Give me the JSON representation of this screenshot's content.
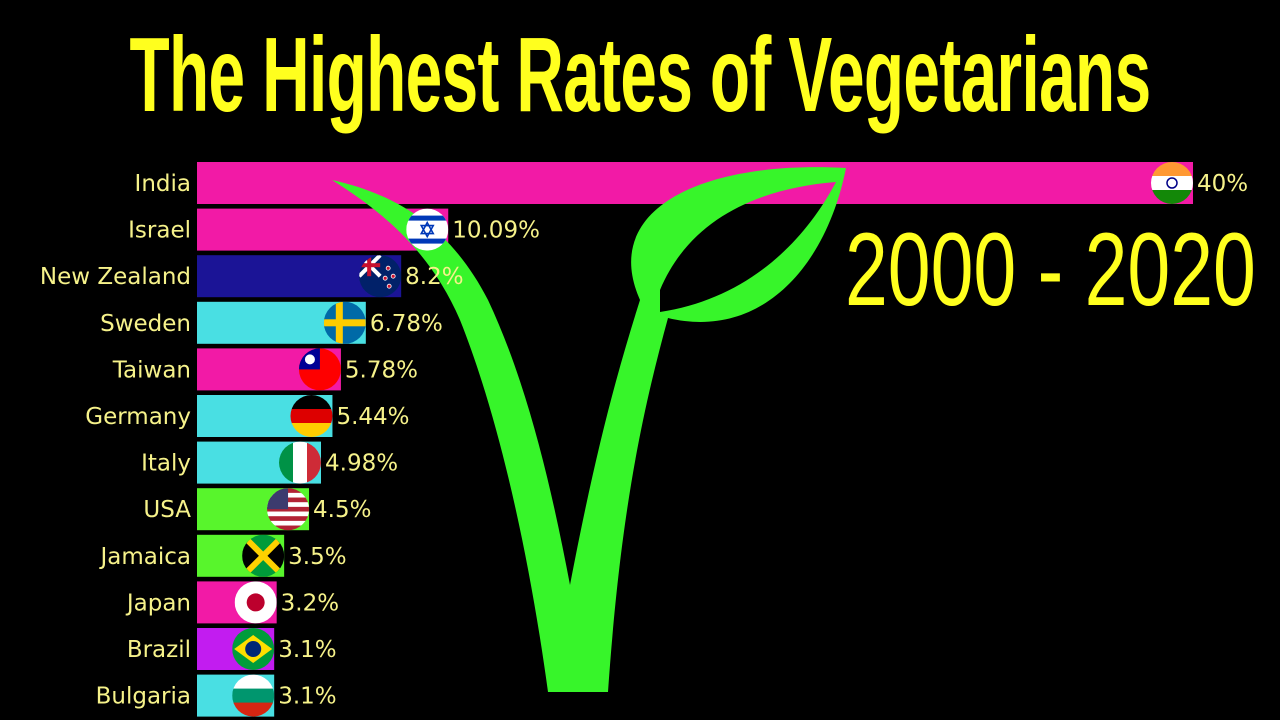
{
  "title": "The Highest Rates of Vegetarians",
  "period": "2000 - 2020",
  "chart_data": {
    "type": "bar",
    "orientation": "horizontal",
    "title": "The Highest Rates of Vegetarians",
    "xlabel": "",
    "ylabel": "",
    "unit": "%",
    "xlim": [
      0,
      40
    ],
    "grid": false,
    "categories": [
      "India",
      "Israel",
      "New Zealand",
      "Sweden",
      "Taiwan",
      "Germany",
      "Italy",
      "USA",
      "Jamaica",
      "Japan",
      "Brazil",
      "Bulgaria"
    ],
    "values": [
      40,
      10.09,
      8.2,
      6.78,
      5.78,
      5.44,
      4.98,
      4.5,
      3.5,
      3.2,
      3.1,
      3.1
    ],
    "value_labels": [
      "40%",
      "10.09%",
      "8.2%",
      "6.78%",
      "5.78%",
      "5.44%",
      "4.98%",
      "4.5%",
      "3.5%",
      "3.2%",
      "3.1%",
      "3.1%"
    ],
    "bar_colors": [
      "#f21aa6",
      "#f21aa6",
      "#1b1496",
      "#49dfe3",
      "#f21aa6",
      "#49dfe3",
      "#49dfe3",
      "#58f52c",
      "#58f52c",
      "#f21aa6",
      "#c21cf0",
      "#49dfe3"
    ],
    "flags": [
      "india-flag-icon",
      "israel-flag-icon",
      "new-zealand-flag-icon",
      "sweden-flag-icon",
      "taiwan-flag-icon",
      "germany-flag-icon",
      "italy-flag-icon",
      "usa-flag-icon",
      "jamaica-flag-icon",
      "japan-flag-icon",
      "brazil-flag-icon",
      "bulgaria-flag-icon"
    ]
  },
  "logo": {
    "icon": "vegetarian-v-leaf-logo",
    "color": "#37f52a"
  },
  "colors": {
    "title": "#ffff1e",
    "labels": "#f6f28a",
    "background": "#000000"
  }
}
